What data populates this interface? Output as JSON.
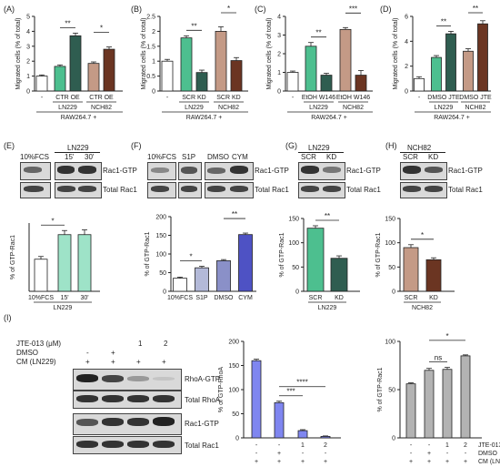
{
  "colors": {
    "white": "#ffffff",
    "light_green": "#4dbf8f",
    "dark_green": "#2f5d50",
    "light_brown": "#c49a86",
    "dark_brown": "#6b3522",
    "mint": "#9ee3c8",
    "gray_blue_light": "#b3b9d8",
    "gray_blue": "#8a90c8",
    "indigo": "#4e52c4",
    "periwinkle": "#7f86f0",
    "light_gray": "#b3b3b3"
  },
  "panel_labels": {
    "A": "(A)",
    "B": "(B)",
    "C": "(C)",
    "D": "(D)",
    "E": "(E)",
    "F": "(F)",
    "G": "(G)",
    "H": "(H)",
    "I": "(I)"
  },
  "common": {
    "migrated_ylabel": "Migrated cells (% of total)",
    "raw": "RAW264.7 +",
    "ln229": "LN229",
    "nch82": "NCH82",
    "rac1_gtp": "Rac1-GTP",
    "total_rac1": "Total Rac1",
    "gtp_rac1_ylabel": "% of GTP-Rac1",
    "gtp_rhoa_ylabel": "% of GTP-RhoA"
  },
  "blots": {
    "E": {
      "header_lanes": [
        "10%FCS",
        "15'",
        "30'"
      ],
      "group": "LN229"
    },
    "F": {
      "header_lanes": [
        "10%FCS",
        "S1P",
        "DMSO",
        "CYM"
      ]
    },
    "G": {
      "header_group": "LN229",
      "header_lanes": [
        "SCR",
        "KD"
      ]
    },
    "H": {
      "header_group": "NCH82",
      "header_lanes": [
        "SCR",
        "KD"
      ]
    },
    "I": {
      "row_labels": [
        "JTE-013 (μM)",
        "DMSO",
        "CM (LN229)"
      ],
      "rows": [
        [
          "",
          "",
          "1",
          "2"
        ],
        [
          "-",
          "+",
          "",
          ""
        ],
        [
          "+",
          "+",
          "+",
          "+"
        ]
      ],
      "bands": [
        "RhoA-GTP",
        "Total RhoA",
        "Rac1-GTP",
        "Total Rac1"
      ]
    }
  },
  "chart_data": [
    {
      "id": "A",
      "type": "bar",
      "ylim": [
        0,
        5
      ],
      "yticks": [
        0,
        1,
        2,
        3,
        4,
        5
      ],
      "ylabel": "Migrated cells (% of total)",
      "categories": [
        "-",
        "CTR",
        "OE",
        "CTR",
        "OE"
      ],
      "cat_labels": [
        "-",
        "CTR OE",
        "CTR OE"
      ],
      "groups": [
        "LN229",
        "NCH82"
      ],
      "values": [
        1.0,
        1.65,
        3.7,
        1.85,
        2.8
      ],
      "errors": [
        0.08,
        0.1,
        0.18,
        0.1,
        0.15
      ],
      "colors": [
        "#ffffff",
        "#4dbf8f",
        "#2f5d50",
        "#c49a86",
        "#6b3522"
      ],
      "sig": [
        {
          "a": 1,
          "b": 2,
          "text": "**"
        },
        {
          "a": 3,
          "b": 4,
          "text": "*"
        }
      ],
      "footer": "RAW264.7 +"
    },
    {
      "id": "B",
      "type": "bar",
      "ylim": [
        0,
        2.5
      ],
      "yticks": [
        0,
        0.5,
        1.0,
        1.5,
        2.0,
        2.5
      ],
      "ylabel": "Migrated cells (% of total)",
      "categories": [
        "-",
        "SCR",
        "KD",
        "SCR",
        "KD"
      ],
      "cat_labels": [
        "-",
        "SCR KD",
        "SCR KD"
      ],
      "groups": [
        "LN229",
        "NCH82"
      ],
      "values": [
        1.0,
        1.78,
        0.62,
        2.0,
        1.02
      ],
      "errors": [
        0.06,
        0.07,
        0.08,
        0.15,
        0.1
      ],
      "colors": [
        "#ffffff",
        "#4dbf8f",
        "#2f5d50",
        "#c49a86",
        "#6b3522"
      ],
      "sig": [
        {
          "a": 1,
          "b": 2,
          "text": "**"
        },
        {
          "a": 3,
          "b": 4,
          "text": "*"
        }
      ],
      "footer": "RAW264.7 +"
    },
    {
      "id": "C",
      "type": "bar",
      "ylim": [
        0,
        4
      ],
      "yticks": [
        0,
        1,
        2,
        3,
        4
      ],
      "ylabel": "Migrated cells (% of total)",
      "categories": [
        "-",
        "EtOH",
        "W146",
        "EtOH",
        "W146"
      ],
      "cat_labels": [
        "-",
        "EtOH W146",
        "EtOH W146"
      ],
      "groups": [
        "LN229",
        "NCH82"
      ],
      "values": [
        1.0,
        2.4,
        0.85,
        3.3,
        0.85
      ],
      "errors": [
        0.07,
        0.2,
        0.1,
        0.1,
        0.25
      ],
      "colors": [
        "#ffffff",
        "#4dbf8f",
        "#2f5d50",
        "#c49a86",
        "#6b3522"
      ],
      "sig": [
        {
          "a": 1,
          "b": 2,
          "text": "**"
        },
        {
          "a": 3,
          "b": 4,
          "text": "***"
        }
      ],
      "footer": "RAW264.7 +"
    },
    {
      "id": "D",
      "type": "bar",
      "ylim": [
        0,
        6
      ],
      "yticks": [
        0,
        2,
        4,
        6
      ],
      "ylabel": "Migrated cells (% of total)",
      "categories": [
        "-",
        "DMSO",
        "JTE",
        "DMSO",
        "JTE"
      ],
      "cat_labels": [
        "-",
        "DMSO JTE",
        "DMSO JTE"
      ],
      "groups": [
        "LN229",
        "NCH82"
      ],
      "values": [
        1.0,
        2.7,
        4.6,
        3.2,
        5.4
      ],
      "errors": [
        0.15,
        0.15,
        0.2,
        0.2,
        0.25
      ],
      "colors": [
        "#ffffff",
        "#4dbf8f",
        "#2f5d50",
        "#c49a86",
        "#6b3522"
      ],
      "sig": [
        {
          "a": 1,
          "b": 2,
          "text": "**"
        },
        {
          "a": 3,
          "b": 4,
          "text": "**"
        }
      ],
      "footer": "RAW264.7 +"
    },
    {
      "id": "E",
      "type": "bar",
      "ylim": [
        0,
        100
      ],
      "yticks": [],
      "ylabel": "% of GTP-Rac1",
      "categories": [
        "10%FCS",
        "15'",
        "30'"
      ],
      "cat_labels": [
        "10%FCS",
        "15'",
        "30'"
      ],
      "groups": [
        "LN229"
      ],
      "values": [
        47,
        83,
        83
      ],
      "errors": [
        4,
        6,
        7
      ],
      "colors": [
        "#ffffff",
        "#9ee3c8",
        "#9ee3c8"
      ],
      "sig": [
        {
          "a": 0,
          "b": 1,
          "text": "*"
        }
      ]
    },
    {
      "id": "F",
      "type": "bar",
      "ylim": [
        0,
        200
      ],
      "yticks": [
        0,
        50,
        100,
        150,
        200
      ],
      "ylabel": "% of GTP-Rac1",
      "categories": [
        "10%FCS",
        "S1P",
        "DMSO",
        "CYM"
      ],
      "cat_labels": [
        "10%FCS",
        "S1P",
        "DMSO",
        "CYM"
      ],
      "values": [
        35,
        63,
        82,
        152
      ],
      "errors": [
        3,
        4,
        3,
        4
      ],
      "colors": [
        "#ffffff",
        "#b3b9d8",
        "#8a90c8",
        "#4e52c4"
      ],
      "sig": [
        {
          "a": 0,
          "b": 1,
          "text": "*"
        },
        {
          "a": 2,
          "b": 3,
          "text": "**"
        }
      ]
    },
    {
      "id": "G",
      "type": "bar",
      "ylim": [
        0,
        150
      ],
      "yticks": [
        0,
        50,
        100,
        150
      ],
      "ylabel": "% of GTP-Rac1",
      "categories": [
        "SCR",
        "KD"
      ],
      "cat_labels": [
        "SCR",
        "KD"
      ],
      "groups": [
        "LN229"
      ],
      "values": [
        130,
        68
      ],
      "errors": [
        5,
        5
      ],
      "colors": [
        "#4dbf8f",
        "#2f5d50"
      ],
      "sig": [
        {
          "a": 0,
          "b": 1,
          "text": "**"
        }
      ]
    },
    {
      "id": "H",
      "type": "bar",
      "ylim": [
        0,
        150
      ],
      "yticks": [
        0,
        50,
        100,
        150
      ],
      "ylabel": "% of GTP-Rac1",
      "categories": [
        "SCR",
        "KD"
      ],
      "cat_labels": [
        "SCR",
        "KD"
      ],
      "groups": [
        "NCH82"
      ],
      "values": [
        90,
        65
      ],
      "errors": [
        6,
        4
      ],
      "colors": [
        "#c49a86",
        "#6b3522"
      ],
      "sig": [
        {
          "a": 0,
          "b": 1,
          "text": "*"
        }
      ]
    },
    {
      "id": "I_rhoa",
      "type": "bar",
      "ylim": [
        0,
        200
      ],
      "yticks": [
        0,
        50,
        100,
        150,
        200
      ],
      "ylabel": "% of GTP-RhoA",
      "categories": [
        "1",
        "2",
        "3",
        "4"
      ],
      "values": [
        160,
        73,
        15,
        3
      ],
      "errors": [
        3,
        3,
        2,
        1
      ],
      "colors": [
        "#7f86f0",
        "#7f86f0",
        "#7f86f0",
        "#7f86f0"
      ],
      "sig": [
        {
          "a": 1,
          "b": 2,
          "text": "***"
        },
        {
          "a": 1,
          "b": 3,
          "text": "****"
        }
      ],
      "cond_rows": [
        [
          "-",
          "-",
          "1",
          "2"
        ],
        [
          "-",
          "+",
          "-",
          "-"
        ],
        [
          "+",
          "+",
          "+",
          "+"
        ]
      ]
    },
    {
      "id": "I_rac1",
      "type": "bar",
      "ylim": [
        0,
        100
      ],
      "yticks": [
        0,
        50,
        100
      ],
      "ylabel": "% of GTP-Rac1",
      "categories": [
        "1",
        "2",
        "3",
        "4"
      ],
      "values": [
        56,
        70,
        71,
        85
      ],
      "errors": [
        1,
        2,
        2,
        1
      ],
      "colors": [
        "#b3b3b3",
        "#b3b3b3",
        "#b3b3b3",
        "#b3b3b3"
      ],
      "sig": [
        {
          "a": 1,
          "b": 2,
          "text": "ns"
        },
        {
          "a": 1,
          "b": 3,
          "text": "*"
        }
      ],
      "cond_rows": [
        [
          "-",
          "-",
          "1",
          "2"
        ],
        [
          "-",
          "+",
          "-",
          "-"
        ],
        [
          "+",
          "+",
          "+",
          "+"
        ]
      ],
      "cond_labels": [
        "JTE-013 (μM)",
        "DMSO",
        "CM (LN229)"
      ]
    }
  ]
}
